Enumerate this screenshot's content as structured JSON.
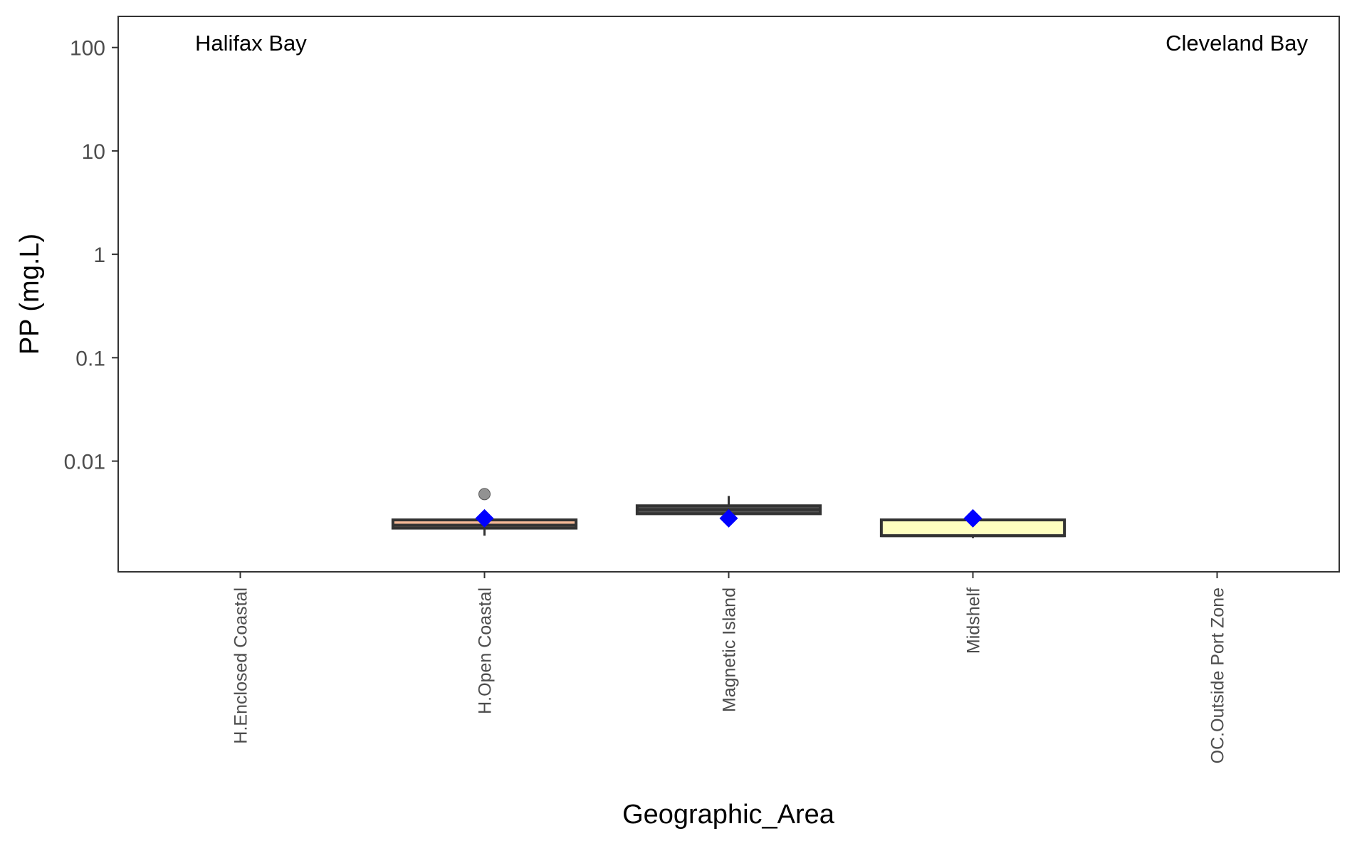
{
  "chart_data": {
    "type": "box",
    "xlabel": "Geographic_Area",
    "ylabel": "PP (mg.L)",
    "y_scale": "log10",
    "ylim": [
      0.00085,
      200
    ],
    "y_ticks": [
      0.01,
      0.1,
      1,
      10,
      100
    ],
    "y_tick_labels": [
      "0.01",
      "0.1",
      "1",
      "10",
      "100"
    ],
    "grid": false,
    "legend": "none",
    "categories": [
      "H.Enclosed Coastal",
      "H.Open Coastal",
      "Magnetic Island",
      "Midshelf",
      "OC.Outside Port Zone"
    ],
    "annotations": [
      {
        "text": "Halifax Bay",
        "position": "top-left"
      },
      {
        "text": "Cleveland Bay",
        "position": "top-right"
      }
    ],
    "boxes": [
      {
        "category": "H.Enclosed Coastal",
        "has_data": false
      },
      {
        "category": "H.Open Coastal",
        "has_data": true,
        "fill": "#f4b896",
        "whisker_low": 0.0019,
        "q1": 0.00225,
        "median": 0.0024,
        "q3": 0.0027,
        "whisker_high": 0.0027,
        "mean": 0.0028,
        "outliers": [
          0.0048
        ]
      },
      {
        "category": "Magnetic Island",
        "has_data": true,
        "fill": "#555555",
        "whisker_low": 0.0031,
        "q1": 0.0031,
        "median": 0.0034,
        "q3": 0.0037,
        "whisker_high": 0.0046,
        "mean": 0.0028,
        "outliers": []
      },
      {
        "category": "Midshelf",
        "has_data": true,
        "fill": "#ffffc0",
        "whisker_low": 0.0018,
        "q1": 0.0019,
        "median": 0.0019,
        "q3": 0.0027,
        "whisker_high": 0.0027,
        "mean": 0.0028,
        "outliers": []
      },
      {
        "category": "OC.Outside Port Zone",
        "has_data": false
      }
    ],
    "colors": {
      "mean_marker": "#0000ff",
      "outlier": "#7f7f7f",
      "box_line": "#333333",
      "panel_border": "#333333"
    }
  }
}
